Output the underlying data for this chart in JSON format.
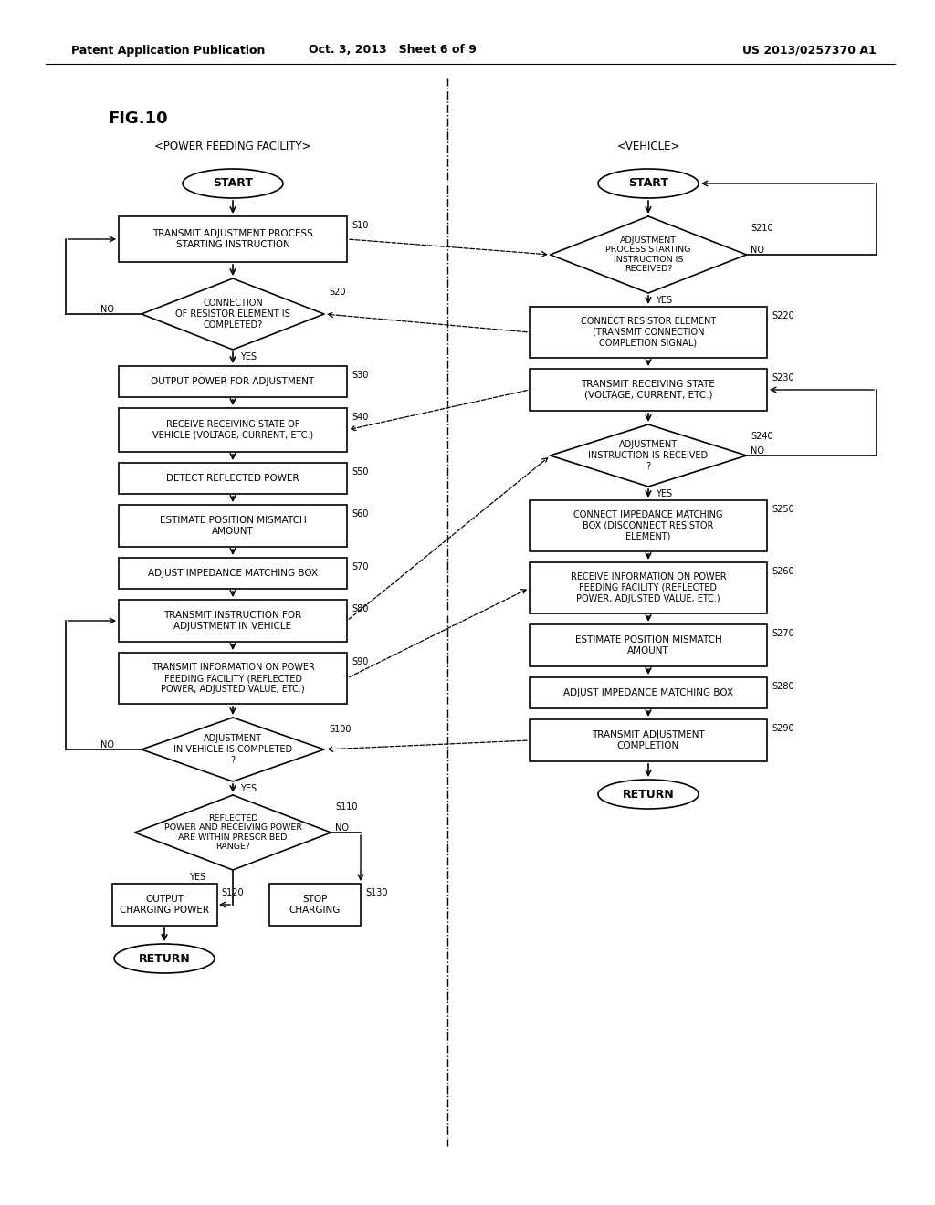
{
  "title": "FIG.10",
  "header_left": "Patent Application Publication",
  "header_center": "Oct. 3, 2013   Sheet 6 of 9",
  "header_right": "US 2013/0257370 A1",
  "left_column_title": "<POWER FEEDING FACILITY>",
  "right_column_title": "<VEHICLE>",
  "bg_color": "#ffffff",
  "fig_width": 10.24,
  "fig_height": 13.2,
  "dpi": 100
}
